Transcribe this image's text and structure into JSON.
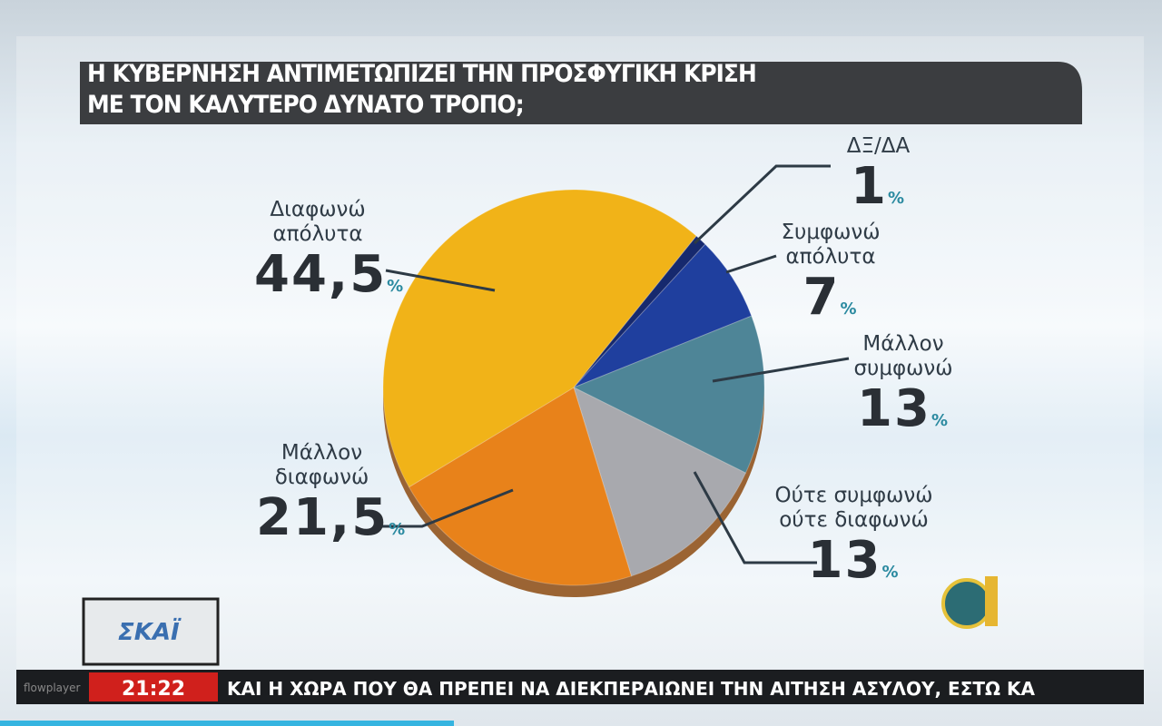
{
  "chart_data": {
    "type": "pie",
    "title": [
      "Η ΚΥΒΕΡΝΗΣΗ ΑΝΤΙΜΕΤΩΠΙΖΕΙ ΤΗΝ ΠΡΟΣΦΥΓΙΚΗ ΚΡΙΣΗ",
      "ΜΕ ΤΟΝ ΚΑΛΥΤΕΡΟ ΔΥΝΑΤΟ ΤΡΟΠΟ;"
    ],
    "categories": [
      "ΔΞ/ΔΑ",
      "Συμφωνώ απόλυτα",
      "Μάλλον συμφωνώ",
      "Ούτε συμφωνώ ούτε διαφωνώ",
      "Μάλλον διαφωνώ",
      "Διαφωνώ απόλυτα"
    ],
    "values": [
      1,
      7,
      13,
      13,
      21.5,
      44.5
    ],
    "value_labels": [
      "1",
      "7",
      "13",
      "13",
      "21,5",
      "44,5"
    ],
    "unit": "%",
    "colors": [
      "#16296e",
      "#1f3f9e",
      "#4e8597",
      "#a8a9ae",
      "#e8821a",
      "#f1b318"
    ]
  },
  "broadcast": {
    "channel": "ΣΚΑΪ",
    "time": "21:22",
    "ticker": "ΚΑΙ Η ΧΩΡΑ ΠΟΥ ΘΑ ΠΡΕΠΕΙ ΝΑ ΔΙΕΚΠΕΡΑΙΩΝΕΙ ΤΗΝ ΑΙΤΗΣΗ ΑΣΥΛΟΥ, ΕΣΤΩ ΚΑ",
    "player": "flowplayer"
  }
}
